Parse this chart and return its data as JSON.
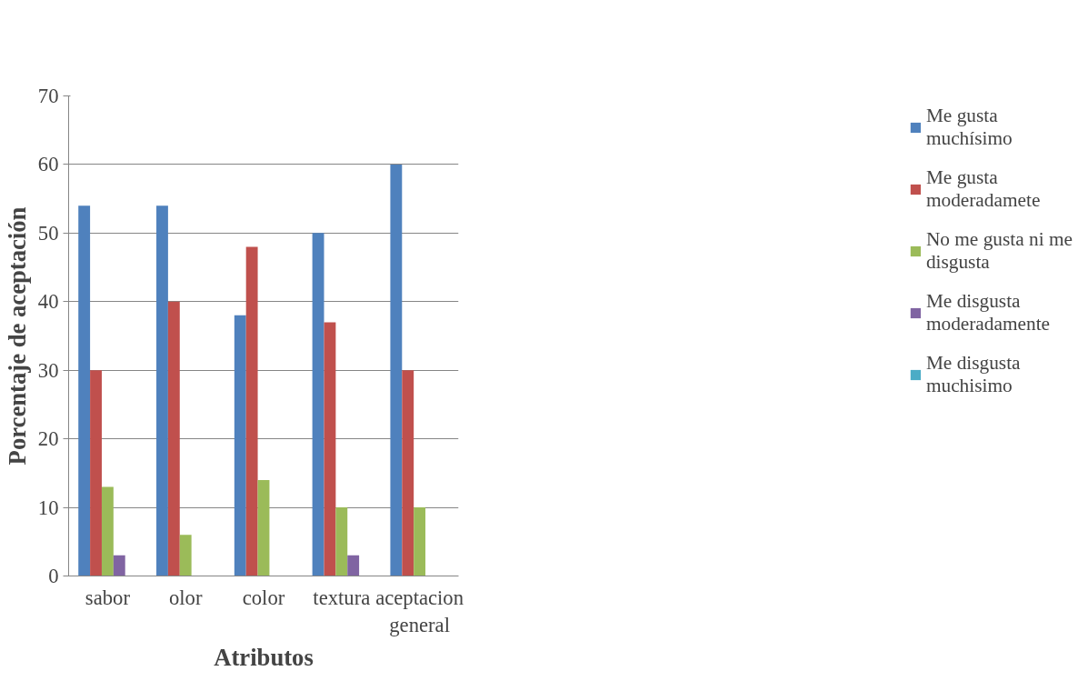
{
  "chart_data": {
    "type": "bar",
    "xlabel": "Atributos",
    "ylabel": "Porcentaje de aceptación",
    "categories": [
      "sabor",
      "olor",
      "color",
      "textura",
      "aceptacion general"
    ],
    "series": [
      {
        "name": "Me gusta muchísimo",
        "color": "#4f81bd",
        "values": [
          54,
          54,
          38,
          50,
          60
        ]
      },
      {
        "name": "Me gusta moderadamete",
        "color": "#c0504d",
        "values": [
          30,
          40,
          48,
          37,
          30
        ]
      },
      {
        "name": "No me gusta ni me disgusta",
        "color": "#9bbb59",
        "values": [
          13,
          6,
          14,
          10,
          10
        ]
      },
      {
        "name": "Me disgusta moderadamente",
        "color": "#8064a2",
        "values": [
          3,
          0,
          0,
          3,
          0
        ]
      },
      {
        "name": "Me disgusta muchisimo",
        "color": "#4bacc6",
        "values": [
          0,
          0,
          0,
          0,
          0
        ]
      }
    ],
    "ylim": [
      0,
      70
    ],
    "yticks": [
      0,
      10,
      20,
      30,
      40,
      50,
      60,
      70
    ],
    "grid": "y",
    "legend": "right"
  }
}
